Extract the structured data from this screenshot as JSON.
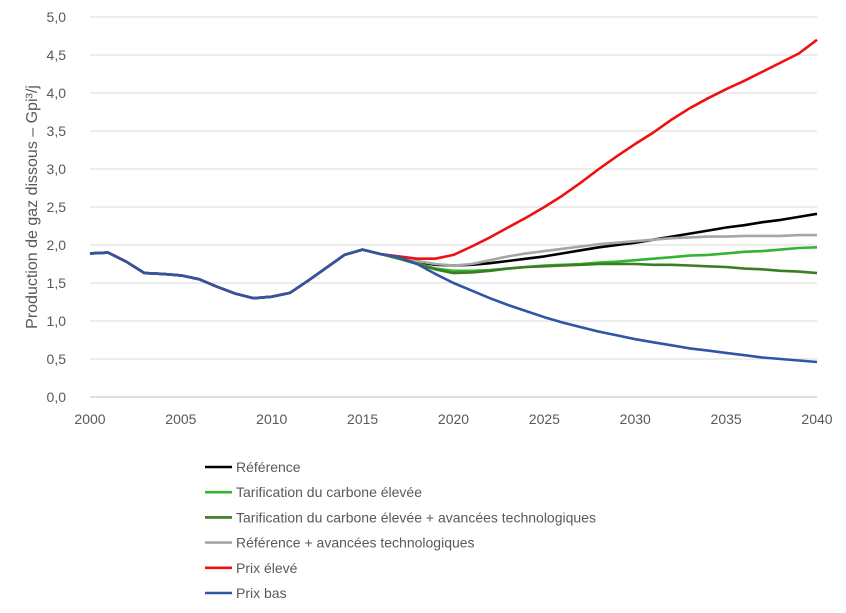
{
  "chart_data": {
    "type": "line",
    "title": "",
    "xlabel": "",
    "ylabel": "Production de gaz dissous – Gpi³/j",
    "xlim": [
      2000,
      2040
    ],
    "ylim": [
      0,
      5
    ],
    "xticks": [
      2000,
      2005,
      2010,
      2015,
      2020,
      2025,
      2030,
      2035,
      2040
    ],
    "xtick_labels": [
      "2000",
      "2005",
      "2010",
      "2015",
      "2020",
      "2025",
      "2030",
      "2035",
      "2040"
    ],
    "yticks": [
      0,
      0.5,
      1,
      1.5,
      2,
      2.5,
      3,
      3.5,
      4,
      4.5,
      5
    ],
    "ytick_labels": [
      "0,0",
      "0,5",
      "1,0",
      "1,5",
      "2,0",
      "2,5",
      "3,0",
      "3,5",
      "4,0",
      "4,5",
      "5,0"
    ],
    "grid": "horizontal",
    "legend_placement": "bottom",
    "x": [
      2000,
      2001,
      2002,
      2003,
      2004,
      2005,
      2006,
      2007,
      2008,
      2009,
      2010,
      2011,
      2012,
      2013,
      2014,
      2015,
      2016,
      2017,
      2018,
      2019,
      2020,
      2021,
      2022,
      2023,
      2024,
      2025,
      2026,
      2027,
      2028,
      2029,
      2030,
      2031,
      2032,
      2033,
      2034,
      2035,
      2036,
      2037,
      2038,
      2039,
      2040
    ],
    "series": [
      {
        "name": "Référence",
        "color": "#000000",
        "values": [
          1.89,
          1.9,
          1.78,
          1.63,
          1.62,
          1.6,
          1.55,
          1.45,
          1.36,
          1.3,
          1.32,
          1.37,
          1.53,
          1.7,
          1.87,
          1.94,
          1.88,
          1.84,
          1.78,
          1.74,
          1.73,
          1.74,
          1.76,
          1.79,
          1.82,
          1.85,
          1.89,
          1.93,
          1.97,
          2.0,
          2.03,
          2.07,
          2.11,
          2.15,
          2.19,
          2.23,
          2.26,
          2.3,
          2.33,
          2.37,
          2.41
        ]
      },
      {
        "name": "Tarification du carbone élevée",
        "color": "#33b533",
        "values": [
          1.89,
          1.9,
          1.78,
          1.63,
          1.62,
          1.6,
          1.55,
          1.45,
          1.36,
          1.3,
          1.32,
          1.37,
          1.53,
          1.7,
          1.87,
          1.94,
          1.88,
          1.83,
          1.76,
          1.69,
          1.66,
          1.66,
          1.67,
          1.69,
          1.71,
          1.73,
          1.74,
          1.75,
          1.77,
          1.78,
          1.8,
          1.82,
          1.84,
          1.86,
          1.87,
          1.89,
          1.91,
          1.92,
          1.94,
          1.96,
          1.97
        ]
      },
      {
        "name": "Tarification du carbone élevée + avancées technologiques",
        "color": "#3a7d22",
        "values": [
          1.89,
          1.9,
          1.78,
          1.63,
          1.62,
          1.6,
          1.55,
          1.45,
          1.36,
          1.3,
          1.32,
          1.37,
          1.53,
          1.7,
          1.87,
          1.94,
          1.88,
          1.82,
          1.75,
          1.68,
          1.63,
          1.64,
          1.66,
          1.69,
          1.71,
          1.72,
          1.73,
          1.74,
          1.75,
          1.75,
          1.75,
          1.74,
          1.74,
          1.73,
          1.72,
          1.71,
          1.69,
          1.68,
          1.66,
          1.65,
          1.63
        ]
      },
      {
        "name": "Référence + avancées technologiques",
        "color": "#a6a6a6",
        "values": [
          1.89,
          1.9,
          1.78,
          1.63,
          1.62,
          1.6,
          1.55,
          1.45,
          1.36,
          1.3,
          1.32,
          1.37,
          1.53,
          1.7,
          1.87,
          1.94,
          1.88,
          1.84,
          1.79,
          1.75,
          1.73,
          1.75,
          1.8,
          1.85,
          1.89,
          1.92,
          1.95,
          1.98,
          2.01,
          2.03,
          2.05,
          2.07,
          2.09,
          2.1,
          2.11,
          2.11,
          2.12,
          2.12,
          2.12,
          2.13,
          2.13
        ]
      },
      {
        "name": "Prix élevé",
        "color": "#ee1111",
        "values": [
          1.89,
          1.9,
          1.78,
          1.63,
          1.62,
          1.6,
          1.55,
          1.45,
          1.36,
          1.3,
          1.32,
          1.37,
          1.53,
          1.7,
          1.87,
          1.94,
          1.88,
          1.85,
          1.82,
          1.82,
          1.87,
          1.98,
          2.1,
          2.23,
          2.36,
          2.5,
          2.65,
          2.82,
          3.0,
          3.17,
          3.33,
          3.48,
          3.65,
          3.8,
          3.93,
          4.05,
          4.16,
          4.28,
          4.4,
          4.52,
          4.7
        ]
      },
      {
        "name": "Prix bas",
        "color": "#2f55a4",
        "values": [
          1.89,
          1.9,
          1.78,
          1.63,
          1.62,
          1.6,
          1.55,
          1.45,
          1.36,
          1.3,
          1.32,
          1.37,
          1.53,
          1.7,
          1.87,
          1.94,
          1.88,
          1.84,
          1.75,
          1.62,
          1.5,
          1.4,
          1.3,
          1.21,
          1.13,
          1.05,
          0.98,
          0.92,
          0.86,
          0.81,
          0.76,
          0.72,
          0.68,
          0.64,
          0.61,
          0.58,
          0.55,
          0.52,
          0.5,
          0.48,
          0.46
        ]
      }
    ]
  }
}
